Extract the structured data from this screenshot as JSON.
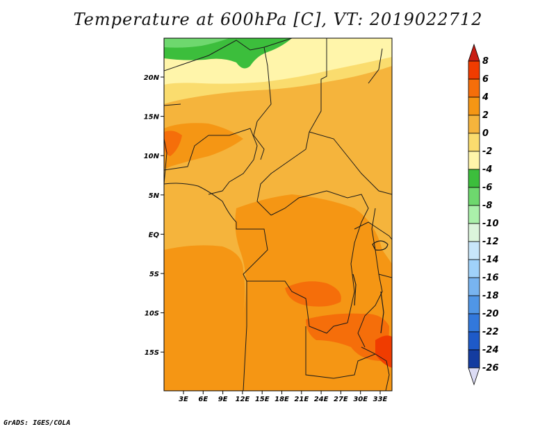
{
  "title": "Temperature at 600hPa [C], VT: 2019022712",
  "credit": "GrADS: IGES/COLA",
  "map": {
    "lon_labels": [
      "3E",
      "6E",
      "9E",
      "12E",
      "15E",
      "18E",
      "21E",
      "24E",
      "27E",
      "30E",
      "33E"
    ],
    "lat_labels": [
      "20N",
      "15N",
      "10N",
      "5N",
      "EQ",
      "5S",
      "10S",
      "15S"
    ]
  },
  "colorbar": {
    "labels": [
      "8",
      "6",
      "4",
      "2",
      "0",
      "-2",
      "-4",
      "-6",
      "-8",
      "-10",
      "-12",
      "-14",
      "-16",
      "-18",
      "-20",
      "-22",
      "-24",
      "-26"
    ],
    "colors": [
      "#c81e14",
      "#f03c00",
      "#f56e0a",
      "#f59614",
      "#f5b43c",
      "#fadc6e",
      "#fff5aa",
      "#3cbe3c",
      "#6ed86e",
      "#aaf0aa",
      "#dcf5dc",
      "#c8e6fa",
      "#a0d2fa",
      "#78b4f0",
      "#5096e6",
      "#3278dc",
      "#1e5ac8",
      "#143ca0",
      "#0a1e6e",
      "#dcdcf5"
    ]
  },
  "colors": {
    "frame": "#000000",
    "border_lines": "#1a1a1a"
  }
}
